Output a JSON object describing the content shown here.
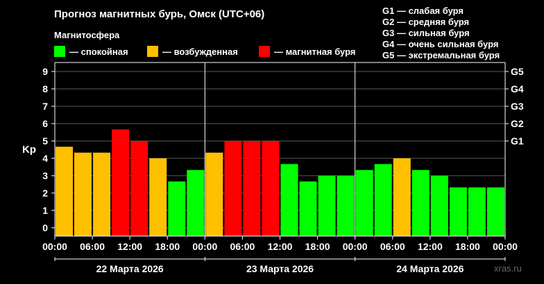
{
  "header": {
    "title": "Прогноз магнитных бурь, Омск (UTC+06)",
    "subtitle": "Магнитосфера"
  },
  "legend": [
    {
      "label": "— спокойная",
      "color": "#00ff00"
    },
    {
      "label": "— возбужденная",
      "color": "#ffc000"
    },
    {
      "label": "— магнитная буря",
      "color": "#ff0000"
    }
  ],
  "storm_scale": [
    "G1 — слабая буря",
    "G2 — средняя буря",
    "G3 — сильная буря",
    "G4 — очень сильная буря",
    "G5 — экстремальная буря"
  ],
  "watermark": "xras.ru",
  "colors": {
    "quiet": "#00ff00",
    "active": "#ffc000",
    "storm": "#ff0000",
    "grid": "#5a5a5a",
    "axis": "#ffffff"
  },
  "chart_data": {
    "type": "bar",
    "ylabel": "Kp",
    "ylim": [
      0,
      9
    ],
    "yticks": [
      "0",
      "1",
      "2",
      "3",
      "4",
      "5",
      "6",
      "7",
      "8",
      "9"
    ],
    "right_axis": [
      {
        "label": "G1",
        "kp": 5
      },
      {
        "label": "G2",
        "kp": 6
      },
      {
        "label": "G3",
        "kp": 7
      },
      {
        "label": "G4",
        "kp": 8
      },
      {
        "label": "G5",
        "kp": 9
      }
    ],
    "xticks": [
      "00:00",
      "06:00",
      "12:00",
      "18:00",
      "00:00",
      "06:00",
      "12:00",
      "18:00",
      "00:00",
      "06:00",
      "12:00",
      "18:00",
      "00:00"
    ],
    "days": [
      "22 Марта 2026",
      "23 Марта 2026",
      "24 Марта 2026"
    ],
    "interval_hours": 3,
    "values": [
      4.67,
      4.33,
      4.33,
      5.67,
      5.0,
      4.0,
      2.67,
      3.33,
      4.33,
      5.0,
      5.0,
      5.0,
      3.67,
      2.67,
      3.0,
      3.0,
      3.33,
      3.67,
      4.0,
      3.33,
      3.0,
      2.33,
      2.33,
      2.33
    ],
    "levels": [
      "active",
      "active",
      "active",
      "storm",
      "storm",
      "active",
      "quiet",
      "quiet",
      "active",
      "storm",
      "storm",
      "storm",
      "quiet",
      "quiet",
      "quiet",
      "quiet",
      "quiet",
      "quiet",
      "active",
      "quiet",
      "quiet",
      "quiet",
      "quiet",
      "quiet"
    ],
    "grid": true,
    "legend_position": "top"
  }
}
